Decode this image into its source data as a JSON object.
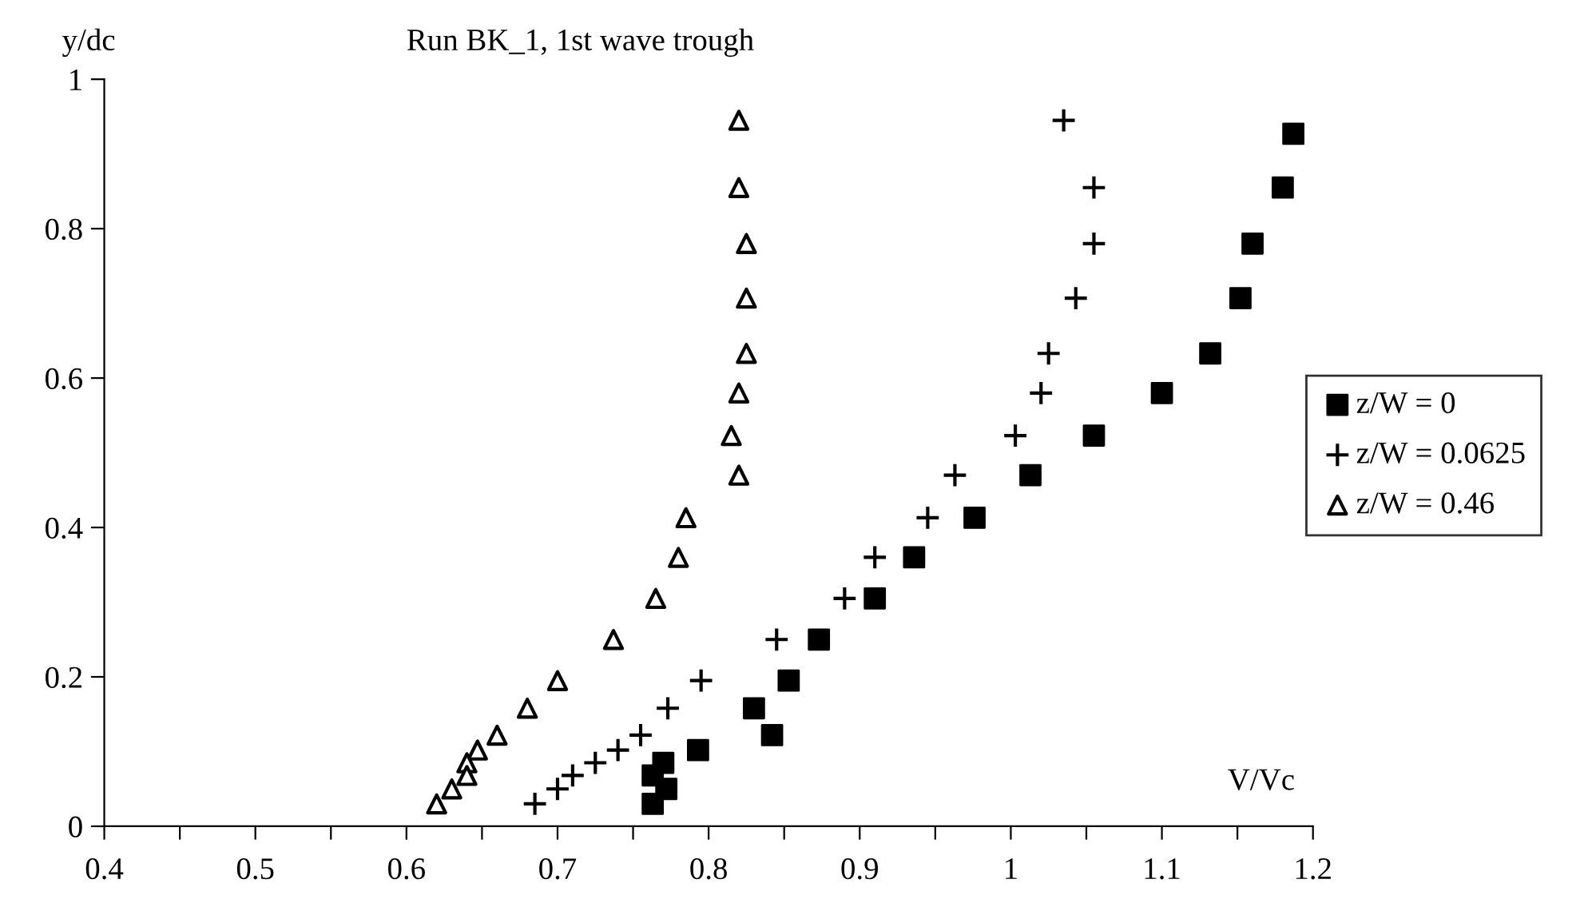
{
  "chart_data": {
    "type": "scatter",
    "title": "Run BK_1, 1st wave trough",
    "xlabel": "V/Vc",
    "ylabel": "y/dc",
    "xlim": [
      0.4,
      1.2
    ],
    "ylim": [
      0,
      1
    ],
    "xticks": [
      0.4,
      {
        "value": 0.45,
        "label": null
      },
      0.5,
      {
        "value": 0.55,
        "label": null
      },
      0.6,
      {
        "value": 0.65,
        "label": null
      },
      0.7,
      {
        "value": 0.75,
        "label": null
      },
      0.8,
      {
        "value": 0.85,
        "label": null
      },
      0.9,
      {
        "value": 0.95,
        "label": null
      },
      1,
      {
        "value": 1.05,
        "label": null
      },
      1.1,
      {
        "value": 1.15,
        "label": null
      },
      1.2
    ],
    "yticks": [
      0,
      0.2,
      0.4,
      0.6,
      0.8,
      1
    ],
    "grid": false,
    "legend": "right",
    "series": [
      {
        "name": "z/W = 0",
        "color": "#000000",
        "marker": "square",
        "x": [
          1.187,
          1.18,
          1.16,
          1.152,
          1.132,
          1.1,
          1.055,
          1.013,
          0.976,
          0.936,
          0.91,
          0.873,
          0.853,
          0.83,
          0.842,
          0.793,
          0.77,
          0.763,
          0.772,
          0.763
        ],
        "values": [
          0.927,
          0.855,
          0.78,
          0.707,
          0.633,
          0.58,
          0.523,
          0.47,
          0.413,
          0.36,
          0.305,
          0.25,
          0.195,
          0.158,
          0.122,
          0.102,
          0.085,
          0.068,
          0.05,
          0.03
        ]
      },
      {
        "name": "z/W = 0.0625",
        "color": "#000000",
        "marker": "cross",
        "x": [
          1.035,
          1.055,
          1.055,
          1.043,
          1.025,
          1.02,
          1.003,
          0.963,
          0.945,
          0.91,
          0.89,
          0.845,
          0.795,
          0.773,
          0.755,
          0.74,
          0.725,
          0.71,
          0.7,
          0.685
        ],
        "values": [
          0.945,
          0.855,
          0.78,
          0.707,
          0.633,
          0.58,
          0.523,
          0.47,
          0.413,
          0.36,
          0.305,
          0.25,
          0.195,
          0.158,
          0.122,
          0.102,
          0.085,
          0.068,
          0.05,
          0.03
        ]
      },
      {
        "name": "z/W = 0.46",
        "color": "#000000",
        "marker": "triangle",
        "x": [
          0.82,
          0.82,
          0.825,
          0.825,
          0.825,
          0.82,
          0.815,
          0.82,
          0.785,
          0.78,
          0.765,
          0.737,
          0.7,
          0.68,
          0.66,
          0.647,
          0.64,
          0.64,
          0.63,
          0.62
        ],
        "values": [
          0.945,
          0.855,
          0.78,
          0.707,
          0.633,
          0.58,
          0.523,
          0.47,
          0.413,
          0.36,
          0.305,
          0.25,
          0.195,
          0.158,
          0.122,
          0.102,
          0.085,
          0.068,
          0.05,
          0.03
        ]
      }
    ]
  }
}
